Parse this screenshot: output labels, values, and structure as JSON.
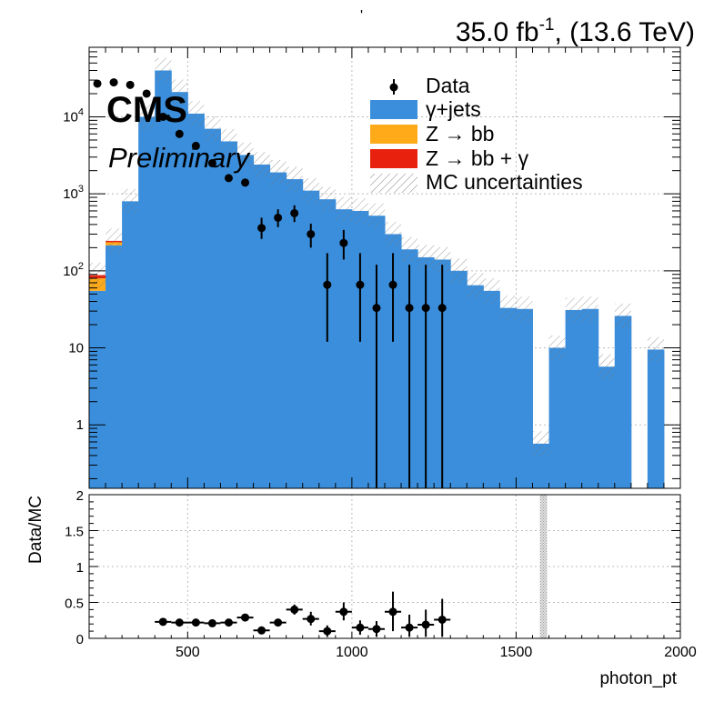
{
  "header": {
    "stray_mark": "'",
    "lumi_text": "35.0 fb",
    "lumi_exp": "-1",
    "energy_text": ", (13.6 TeV)"
  },
  "labels": {
    "experiment": "CMS",
    "status": "Preliminary"
  },
  "colors": {
    "gjets": "#3a8edc",
    "zbb": "#ffab19",
    "zbbg": "#e8210e",
    "data": "#000000"
  },
  "chart_data": [
    {
      "type": "bar",
      "subtype": "stacked-histogram-with-data",
      "xlabel": "photon_pt",
      "ylabel": "",
      "xlim": [
        200,
        2000
      ],
      "ylim": [
        0.15,
        80000
      ],
      "yscale": "log",
      "grid": true,
      "legend_position": "top-right",
      "ytick_labels": [
        "1",
        "10",
        "10^2",
        "10^3",
        "10^4"
      ],
      "bin_edges": [
        200,
        250,
        300,
        350,
        400,
        450,
        500,
        550,
        600,
        650,
        700,
        750,
        800,
        850,
        900,
        950,
        1000,
        1050,
        1100,
        1150,
        1200,
        1250,
        1300,
        1350,
        1400,
        1450,
        1500,
        1550,
        1600,
        1650,
        1700,
        1750,
        1800,
        1850,
        1900,
        1950
      ],
      "series": [
        {
          "name": "γ+jets",
          "values": [
            55,
            215,
            800,
            10000,
            40000,
            21000,
            11000,
            7000,
            4800,
            3200,
            2400,
            1900,
            1550,
            1100,
            850,
            630,
            600,
            520,
            300,
            190,
            150,
            140,
            100,
            65,
            55,
            33,
            32,
            0.57,
            10,
            31,
            32,
            5.7,
            26,
            0,
            9.5
          ]
        },
        {
          "name": "Z → bb",
          "values": [
            25,
            20,
            0,
            0,
            0,
            0,
            0,
            0,
            0,
            0,
            0,
            0,
            0,
            0,
            0,
            0,
            0,
            0,
            0,
            0,
            0,
            0,
            0,
            0,
            0,
            0,
            0,
            0,
            0,
            0,
            0,
            0,
            0,
            0,
            0
          ]
        },
        {
          "name": "Z → bb + γ",
          "values": [
            8,
            10,
            0,
            0,
            0,
            0,
            0,
            0,
            0,
            0,
            0,
            0,
            0,
            0,
            0,
            0,
            0,
            0,
            0,
            0,
            0,
            0,
            0,
            0,
            0,
            0,
            0,
            0,
            0,
            0,
            0,
            0,
            0,
            0,
            0
          ]
        }
      ],
      "uncertainty_label": "MC uncertainties",
      "data_label": "Data",
      "data_points": [
        {
          "x": 225,
          "y": 27000
        },
        {
          "x": 275,
          "y": 28000
        },
        {
          "x": 325,
          "y": 26000
        },
        {
          "x": 375,
          "y": 20000
        },
        {
          "x": 425,
          "y": 10000
        },
        {
          "x": 475,
          "y": 6000
        },
        {
          "x": 525,
          "y": 4200
        },
        {
          "x": 575,
          "y": 2500
        },
        {
          "x": 625,
          "y": 1600
        },
        {
          "x": 675,
          "y": 1400
        },
        {
          "x": 725,
          "y": 360,
          "yerr": [
            260,
            490
          ]
        },
        {
          "x": 775,
          "y": 490,
          "yerr": [
            370,
            630
          ]
        },
        {
          "x": 825,
          "y": 560,
          "yerr": [
            430,
            710
          ]
        },
        {
          "x": 875,
          "y": 300,
          "yerr": [
            200,
            410
          ]
        },
        {
          "x": 925,
          "y": 66,
          "yerr": [
            12,
            170
          ]
        },
        {
          "x": 975,
          "y": 230,
          "yerr": [
            140,
            340
          ]
        },
        {
          "x": 1025,
          "y": 66,
          "yerr": [
            12,
            170
          ]
        },
        {
          "x": 1075,
          "y": 33,
          "yerr": [
            0.1,
            120
          ]
        },
        {
          "x": 1125,
          "y": 66,
          "yerr": [
            12,
            170
          ]
        },
        {
          "x": 1175,
          "y": 33,
          "yerr": [
            0.1,
            120
          ]
        },
        {
          "x": 1225,
          "y": 33,
          "yerr": [
            0.1,
            120
          ]
        },
        {
          "x": 1275,
          "y": 33,
          "yerr": [
            0.1,
            120
          ]
        }
      ]
    },
    {
      "type": "scatter",
      "subtype": "ratio",
      "xlabel": "photon_pt",
      "ylabel": "Data/MC",
      "xlim": [
        200,
        2000
      ],
      "ylim": [
        0,
        2
      ],
      "grid": true,
      "xtick_labels": [
        "500",
        "1000",
        "1500",
        "2000"
      ],
      "ytick_labels": [
        "0",
        "0.5",
        "1",
        "1.5",
        "2"
      ],
      "points": [
        {
          "x": 425,
          "y": 0.23
        },
        {
          "x": 475,
          "y": 0.22
        },
        {
          "x": 525,
          "y": 0.22
        },
        {
          "x": 575,
          "y": 0.21
        },
        {
          "x": 625,
          "y": 0.22
        },
        {
          "x": 675,
          "y": 0.29,
          "yerr": [
            0.26,
            0.32
          ]
        },
        {
          "x": 725,
          "y": 0.11,
          "yerr": [
            0.08,
            0.14
          ]
        },
        {
          "x": 775,
          "y": 0.22,
          "yerr": [
            0.18,
            0.27
          ]
        },
        {
          "x": 825,
          "y": 0.4,
          "yerr": [
            0.33,
            0.47
          ]
        },
        {
          "x": 875,
          "y": 0.27,
          "yerr": [
            0.18,
            0.37
          ]
        },
        {
          "x": 925,
          "y": 0.1,
          "yerr": [
            0.02,
            0.18
          ]
        },
        {
          "x": 975,
          "y": 0.37,
          "yerr": [
            0.25,
            0.5
          ]
        },
        {
          "x": 1025,
          "y": 0.15,
          "yerr": [
            0.05,
            0.25
          ]
        },
        {
          "x": 1075,
          "y": 0.13,
          "yerr": [
            0.02,
            0.24
          ]
        },
        {
          "x": 1125,
          "y": 0.37,
          "yerr": [
            0.1,
            0.65
          ]
        },
        {
          "x": 1175,
          "y": 0.15,
          "yerr": [
            0.02,
            0.33
          ]
        },
        {
          "x": 1225,
          "y": 0.19,
          "yerr": [
            0.02,
            0.4
          ]
        },
        {
          "x": 1275,
          "y": 0.26,
          "yerr": [
            0.02,
            0.55
          ]
        }
      ],
      "uncertainty_band": {
        "x": [
          1550,
          1600
        ],
        "y": [
          0,
          2
        ]
      }
    }
  ]
}
